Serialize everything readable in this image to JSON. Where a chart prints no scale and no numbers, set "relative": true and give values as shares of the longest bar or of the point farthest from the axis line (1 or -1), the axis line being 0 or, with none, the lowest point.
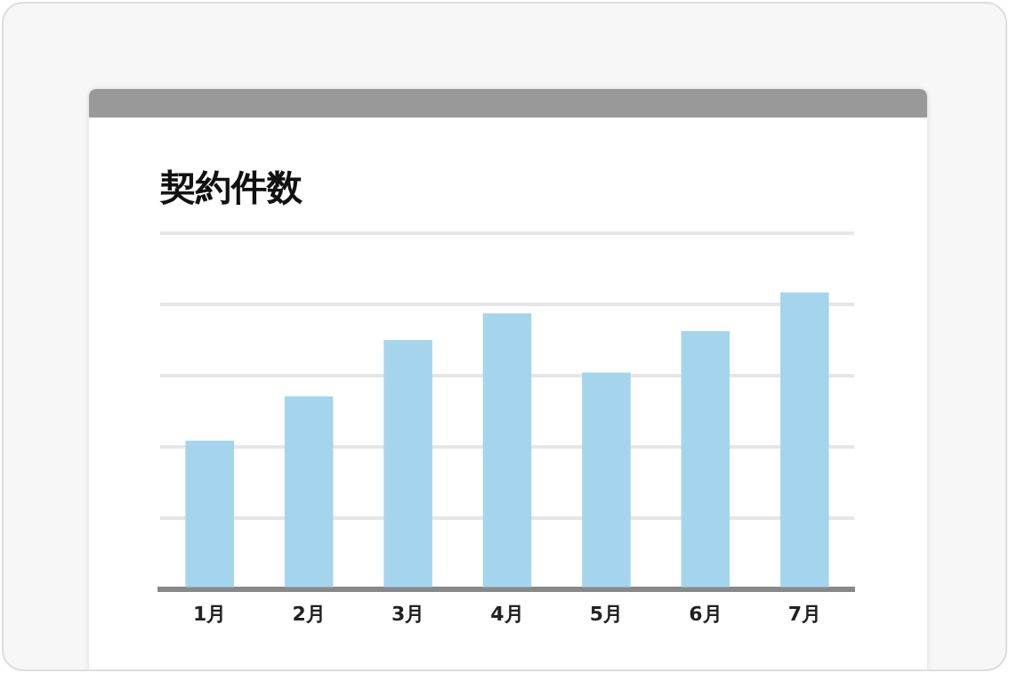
{
  "chart_data": {
    "type": "bar",
    "title": "契約件数",
    "categories": [
      "1月",
      "2月",
      "3月",
      "4月",
      "5月",
      "6月",
      "7月"
    ],
    "values": [
      0.5,
      0.65,
      0.84,
      0.93,
      0.73,
      0.87,
      1
    ],
    "color": "#a5d5ec",
    "relative": true,
    "grid": "y",
    "legend": false
  }
}
